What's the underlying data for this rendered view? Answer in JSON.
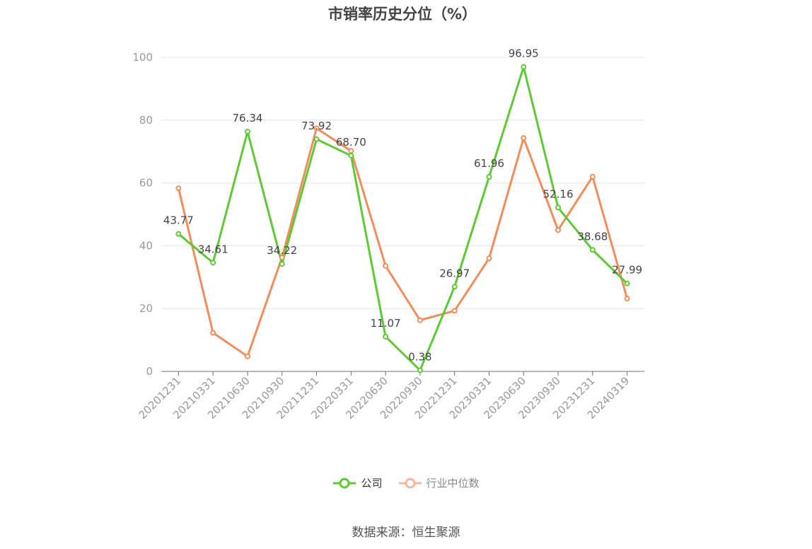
{
  "chart_data": {
    "type": "line",
    "title": "市销率历史分位（%）",
    "categories": [
      "20201231",
      "20210331",
      "20210630",
      "20210930",
      "20211231",
      "20220331",
      "20220630",
      "20220930",
      "20221231",
      "20230331",
      "20230630",
      "20230930",
      "20231231",
      "20240319"
    ],
    "series": [
      {
        "name": "公司",
        "color": "#5ec934",
        "values": [
          43.77,
          34.61,
          76.34,
          34.22,
          73.92,
          68.7,
          11.07,
          0.38,
          26.97,
          61.96,
          96.95,
          52.16,
          38.68,
          27.99
        ],
        "labels": [
          "43.77",
          "34.61",
          "76.34",
          "34.22",
          "73.92",
          "68.70",
          "11.07",
          "0.38",
          "26.97",
          "61.96",
          "96.95",
          "52.16",
          "38.68",
          "27.99"
        ]
      },
      {
        "name": "行业中位数",
        "color": "#f28c5a",
        "values": [
          58.3,
          12.3,
          4.8,
          36.3,
          77.4,
          70.2,
          33.6,
          16.3,
          19.3,
          36.0,
          74.3,
          45.0,
          62.0,
          23.2
        ]
      }
    ],
    "yticks": [
      "0",
      "20",
      "40",
      "60",
      "80",
      "100"
    ],
    "ylim": [
      0,
      100
    ],
    "grid": true,
    "legend_position": "bottom"
  },
  "footer": {
    "source": "数据来源：恒生聚源"
  }
}
